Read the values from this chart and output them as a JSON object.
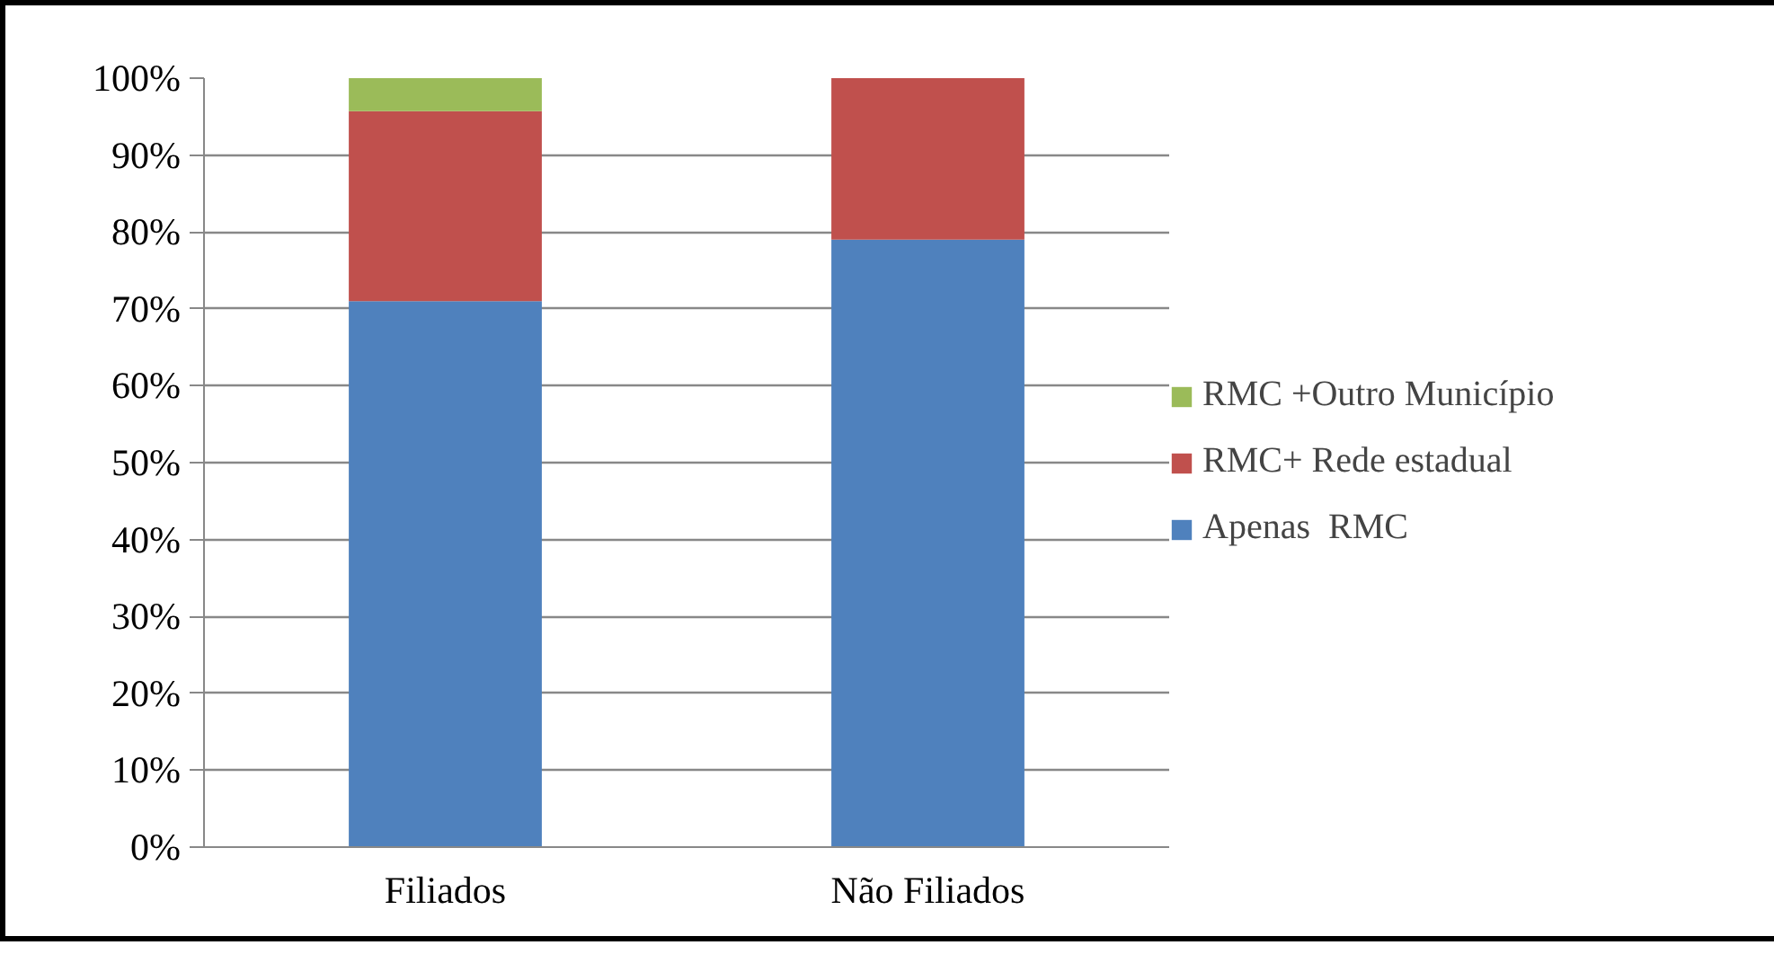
{
  "chart_data": {
    "type": "bar",
    "stacked": true,
    "categories": [
      "Filiados",
      "Não Filiados"
    ],
    "series": [
      {
        "name": "Apenas  RMC",
        "color": "#4f81bd",
        "values": [
          71,
          79
        ]
      },
      {
        "name": "RMC+ Rede estadual",
        "color": "#c0504d",
        "values": [
          24.7,
          21
        ]
      },
      {
        "name": "RMC +Outro Município",
        "color": "#9bbb59",
        "values": [
          4.3,
          0
        ]
      }
    ],
    "ylim": [
      0,
      100
    ],
    "yticks": [
      {
        "value": 0,
        "label": "0%"
      },
      {
        "value": 10,
        "label": "10%"
      },
      {
        "value": 20,
        "label": "20%"
      },
      {
        "value": 30,
        "label": "30%"
      },
      {
        "value": 40,
        "label": "40%"
      },
      {
        "value": 50,
        "label": "50%"
      },
      {
        "value": 60,
        "label": "60%"
      },
      {
        "value": 70,
        "label": "70%"
      },
      {
        "value": 80,
        "label": "80%"
      },
      {
        "value": 90,
        "label": "90%"
      },
      {
        "value": 100,
        "label": "100%"
      }
    ],
    "grid": "y",
    "legend": "right"
  }
}
